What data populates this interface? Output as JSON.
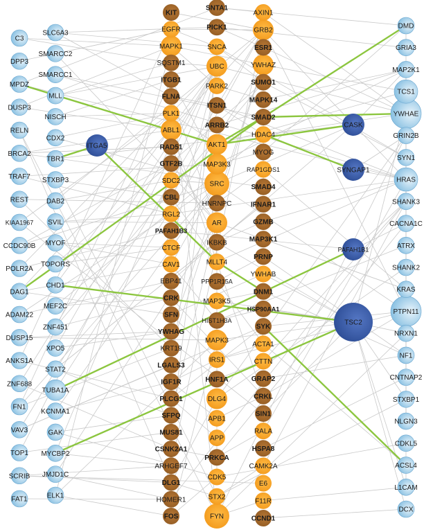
{
  "colors": {
    "edge": "#c9c9c9",
    "highlight_edge": "#8cc63f",
    "light_blue": "#a9d3ea",
    "light_blue_edge": "#6aa6cf",
    "dark_blue": "#3c5ea8",
    "orange": "#f8a72c",
    "brown": "#a56a2d",
    "label_dark": "#1a1a1a"
  },
  "columns": {
    "col1": {
      "style": "lightblue",
      "nodes": [
        "C3",
        "DPP3",
        "MPDZ",
        "DUSP3",
        "RELN",
        "BRCA2",
        "TRAF7",
        "REST",
        "KIAA1967",
        "CCDC90B",
        "POLR2A",
        "DAG1",
        "ADAM22",
        "DUSP15",
        "ANKS1A",
        "ZNF688",
        "FN1",
        "VAV3",
        "TOP1",
        "SCRIB",
        "FAT1"
      ]
    },
    "col2": {
      "style": "lightblue",
      "nodes": [
        "SLC6A3",
        "SMARCC2",
        "SMARCC1",
        "MLL",
        "NISCH",
        "CDX2",
        "TBR1",
        "STXBP3",
        "DAB2",
        "SVIL",
        "MYOF",
        "TOPORS",
        "CHD1",
        "MEF2C",
        "ZNF451",
        "XPO5",
        "STAT2",
        "TUBA1A",
        "KCNMA1",
        "GAK",
        "MYCBP2",
        "JMJD1C",
        "ELK1"
      ]
    },
    "col3": {
      "style": "mixed",
      "nodes": [
        "KIT",
        "EGFR",
        "MAPK1",
        "SQSTM1",
        "ITGB1",
        "FLNA",
        "PLK1",
        "ABL1",
        "RAD51",
        "GTF2B",
        "SDC2",
        "CBL",
        "RGL2",
        "PAFAH1B3",
        "CTCF",
        "CAV1",
        "EBP41",
        "CRK",
        "SFN",
        "YWHAG",
        "KRT19",
        "LGALS3",
        "IGF1R",
        "PLCG1",
        "SFPQ",
        "MUS81",
        "CSNK2A1",
        "ARHGEF7",
        "DLG1",
        "HOMER1",
        "FOS"
      ]
    },
    "col4": {
      "style": "mixed",
      "nodes": [
        "SNTA1",
        "PICK1",
        "SNCA",
        "UBC",
        "PARK2",
        "ITSN1",
        "ARRB2",
        "AKT1",
        "MAP3K3",
        "SRC",
        "HNRNPC",
        "AR",
        "IKBKB",
        "MLLT4",
        "PPP1R15A",
        "MAP3K5",
        "HIST1H3A",
        "MAPK3",
        "IRS1",
        "HNF1A",
        "DLG4",
        "APB1",
        "APP",
        "PRKCA",
        "CDK5",
        "STX2",
        "FYN"
      ]
    },
    "col5": {
      "style": "mixed",
      "nodes": [
        "AXIN1",
        "GRB2",
        "ESR1",
        "YWHAZ",
        "SUMO1",
        "MAPK14",
        "SMAD2",
        "HDAC4",
        "MYOG",
        "RAP1GDS1",
        "SMAD4",
        "IFNAR1",
        "GZMB",
        "MAP3K1",
        "PRNP",
        "YWHAB",
        "DNM1",
        "HSP90AA1",
        "SYK",
        "ACTA1",
        "CTTN",
        "GRAP2",
        "CRKL",
        "SIN1",
        "RALA",
        "HSPA8",
        "CAMK2A",
        "E6",
        "F11R",
        "CCND1"
      ]
    },
    "col7": {
      "style": "lightblue",
      "nodes": [
        "DMD",
        "GRIA3",
        "MAP2K1",
        "TCS1",
        "YWHAE",
        "GRIN2B",
        "SYN1",
        "HRAS",
        "SHANK3",
        "CACNA1C",
        "ATRX",
        "SHANK2",
        "KRAS",
        "PTPN11",
        "NRXN1",
        "NF1",
        "CNTNAP2",
        "STXBP1",
        "NLGN3",
        "CDKL5",
        "ACSL4",
        "L1CAM",
        "DCX"
      ]
    }
  },
  "special_nodes": [
    "ITGA5",
    "CASK",
    "SYNGAP1",
    "PAFAH1B1",
    "TSC2"
  ],
  "node_styles": {
    "brown": [
      "KIT",
      "SQSTM1",
      "ITGB1",
      "FLNA",
      "RAD51",
      "GTF2B",
      "CBL",
      "PAFAH1B3",
      "EBP41",
      "CRK",
      "SFN",
      "YWHAG",
      "KRT19",
      "LGALS3",
      "IGF1R",
      "PLCG1",
      "SFPQ",
      "MUS81",
      "CSNK2A1",
      "ARHGEF7",
      "DLG1",
      "HOMER1",
      "FOS",
      "SNTA1",
      "PICK1",
      "ITSN1",
      "ARRB2",
      "HNRNPC",
      "IKBKB",
      "PPP1R15A",
      "HIST1H3A",
      "HNF1A",
      "PRKCA",
      "ESR1",
      "SUMO1",
      "MAPK14",
      "SMAD2",
      "MYOG",
      "SMAD4",
      "IFNAR1",
      "GZMB",
      "MAP3K1",
      "PRNP",
      "DNM1",
      "HSP90AA1",
      "SYK",
      "GRAP2",
      "CRKL",
      "SIN1",
      "HSPA8",
      "CCND1"
    ],
    "bold": [
      "KIT",
      "ITGB1",
      "FLNA",
      "RAD51",
      "GTF2B",
      "CBL",
      "PAFAH1B3",
      "CRK",
      "SFN",
      "YWHAG",
      "LGALS3",
      "IGF1R",
      "PLCG1",
      "SFPQ",
      "MUS81",
      "CSNK2A1",
      "DLG1",
      "FOS",
      "SNTA1",
      "PICK1",
      "ITSN1",
      "ARRB2",
      "HNF1A",
      "PRKCA",
      "ESR1",
      "SUMO1",
      "MAPK14",
      "SMAD2",
      "SMAD4",
      "IFNAR1",
      "GZMB",
      "MAP3K1",
      "PRNP",
      "DNM1",
      "HSP90AA1",
      "SYK",
      "GRAP2",
      "CRKL",
      "SIN1",
      "HSPA8",
      "CCND1"
    ],
    "big": [
      "GRB2",
      "UBC",
      "SRC",
      "YWHAZ",
      "FYN",
      "AKT1",
      "MAP3K3",
      "DLG4",
      "AR",
      "MAPK3",
      "MAPK1",
      "ABL1",
      "TCS1",
      "YWHAE",
      "PTPN11",
      "HRAS",
      "TUBA1A",
      "CASK",
      "PAFAH1B1",
      "SYNGAP1",
      "ITGA5"
    ],
    "huge": [
      "TSC2",
      "YWHAE",
      "PTPN11",
      "SRC",
      "FYN"
    ]
  },
  "highlight_edges": [
    [
      "MPDZ",
      "AKT1"
    ],
    [
      "AKT1",
      "CASK"
    ],
    [
      "AKT1",
      "SMAD2"
    ],
    [
      "SMAD2",
      "DMD"
    ],
    [
      "ITGA5",
      "TBR1"
    ],
    [
      "ITGA5",
      "MLLT4"
    ],
    [
      "MLLT4",
      "DNM1"
    ],
    [
      "HDAC4",
      "SYNGAP1"
    ],
    [
      "SMAD2",
      "YWHAE"
    ],
    [
      "SMAD2",
      "DAG1"
    ],
    [
      "CHD1",
      "TSC2"
    ],
    [
      "TUBA1A",
      "PAFAH1B1"
    ],
    [
      "MYCBP2",
      "TSC2"
    ],
    [
      "SYK",
      "ACSL4"
    ]
  ],
  "gray_edges": [
    [
      "C3",
      "MAPK1"
    ],
    [
      "DPP3",
      "EGFR"
    ],
    [
      "MPDZ",
      "SNTA1"
    ],
    [
      "DUSP3",
      "MAPK1"
    ],
    [
      "RELN",
      "FYN"
    ],
    [
      "BRCA2",
      "RAD51"
    ],
    [
      "BRCA2",
      "SMAD4"
    ],
    [
      "TRAF7",
      "MAP3K3"
    ],
    [
      "REST",
      "HNRNPC"
    ],
    [
      "KIAA1967",
      "SIN1"
    ],
    [
      "CCDC90B",
      "SRC"
    ],
    [
      "POLR2A",
      "UBC"
    ],
    [
      "DAG1",
      "GRB2"
    ],
    [
      "DAG1",
      "CAV1"
    ],
    [
      "ADAM22",
      "SRC"
    ],
    [
      "DUSP15",
      "MAPK3"
    ],
    [
      "ANKS1A",
      "EGFR"
    ],
    [
      "ZNF688",
      "UBC"
    ],
    [
      "FN1",
      "ITGB1"
    ],
    [
      "FN1",
      "SRC"
    ],
    [
      "VAV3",
      "GRB2"
    ],
    [
      "VAV3",
      "SYK"
    ],
    [
      "TOP1",
      "UBC"
    ],
    [
      "SCRIB",
      "DLG1"
    ],
    [
      "FAT1",
      "HOMER1"
    ],
    [
      "SLC6A3",
      "SNCA"
    ],
    [
      "SLC6A3",
      "PICK1"
    ],
    [
      "SMARCC2",
      "AR"
    ],
    [
      "SMARCC1",
      "SMAD2"
    ],
    [
      "MLL",
      "UBC"
    ],
    [
      "NISCH",
      "ITGB1"
    ],
    [
      "CDX2",
      "SRC"
    ],
    [
      "TBR1",
      "CASK"
    ],
    [
      "STXBP3",
      "STX2"
    ],
    [
      "DAB2",
      "GRB2"
    ],
    [
      "SVIL",
      "AR"
    ],
    [
      "MYOF",
      "CAV1"
    ],
    [
      "TOPORS",
      "SUMO1"
    ],
    [
      "CHD1",
      "UBC"
    ],
    [
      "MEF2C",
      "HDAC4"
    ],
    [
      "ZNF451",
      "SUMO1"
    ],
    [
      "XPO5",
      "UBC"
    ],
    [
      "STAT2",
      "IFNAR1"
    ],
    [
      "TUBA1A",
      "YWHAZ"
    ],
    [
      "KCNMA1",
      "SRC"
    ],
    [
      "GAK",
      "CDK5"
    ],
    [
      "MYCBP2",
      "UBC"
    ],
    [
      "JMJD1C",
      "AR"
    ],
    [
      "ELK1",
      "MAPK3"
    ],
    [
      "ELK1",
      "MAPK1"
    ],
    [
      "KIT",
      "GRB2"
    ],
    [
      "EGFR",
      "GRB2"
    ],
    [
      "MAPK1",
      "YWHAZ"
    ],
    [
      "SQSTM1",
      "UBC"
    ],
    [
      "ITGB1",
      "FYN"
    ],
    [
      "FLNA",
      "AR"
    ],
    [
      "PLK1",
      "AKT1"
    ],
    [
      "ABL1",
      "CRKL"
    ],
    [
      "RAD51",
      "BRCA2"
    ],
    [
      "GTF2B",
      "AR"
    ],
    [
      "SDC2",
      "SRC"
    ],
    [
      "CBL",
      "GRB2"
    ],
    [
      "RGL2",
      "HRAS"
    ],
    [
      "PAFAH1B3",
      "PAFAH1B1"
    ],
    [
      "CTCF",
      "UBC"
    ],
    [
      "CAV1",
      "SRC"
    ],
    [
      "EBP41",
      "CASK"
    ],
    [
      "CRK",
      "CRKL"
    ],
    [
      "SFN",
      "YWHAB"
    ],
    [
      "YWHAG",
      "YWHAZ"
    ],
    [
      "KRT19",
      "YWHAZ"
    ],
    [
      "LGALS3",
      "UBC"
    ],
    [
      "IGF1R",
      "IRS1"
    ],
    [
      "PLCG1",
      "SYK"
    ],
    [
      "SFPQ",
      "AR"
    ],
    [
      "MUS81",
      "UBC"
    ],
    [
      "CSNK2A1",
      "PRKCA"
    ],
    [
      "ARHGEF7",
      "GRB2"
    ],
    [
      "DLG1",
      "DLG4"
    ],
    [
      "HOMER1",
      "SHANK3"
    ],
    [
      "FOS",
      "MAPK3"
    ],
    [
      "SNTA1",
      "DMD"
    ],
    [
      "PICK1",
      "GRIA3"
    ],
    [
      "SNCA",
      "SYN1"
    ],
    [
      "UBC",
      "YWHAE"
    ],
    [
      "PARK2",
      "SNCA"
    ],
    [
      "ITSN1",
      "HRAS"
    ],
    [
      "ARRB2",
      "MAP2K1"
    ],
    [
      "AKT1",
      "TCS1"
    ],
    [
      "MAP3K3",
      "MAP2K1"
    ],
    [
      "SRC",
      "PTPN11"
    ],
    [
      "SRC",
      "CASK"
    ],
    [
      "HNRNPC",
      "AR"
    ],
    [
      "AR",
      "KRAS"
    ],
    [
      "IKBKB",
      "TSC2"
    ],
    [
      "MLLT4",
      "HRAS"
    ],
    [
      "PPP1R15A",
      "ACTA1"
    ],
    [
      "MAP3K5",
      "TSC2"
    ],
    [
      "HIST1H3A",
      "ATRX"
    ],
    [
      "MAPK3",
      "TSC2"
    ],
    [
      "IRS1",
      "PTPN11"
    ],
    [
      "HNF1A",
      "AR"
    ],
    [
      "DLG4",
      "GRIN2B"
    ],
    [
      "DLG4",
      "SHANK2"
    ],
    [
      "APB1",
      "APP"
    ],
    [
      "APP",
      "CDK5"
    ],
    [
      "PRKCA",
      "CACNA1C"
    ],
    [
      "CDK5",
      "CDKL5"
    ],
    [
      "STX2",
      "STXBP1"
    ],
    [
      "FYN",
      "GRIN2B"
    ],
    [
      "FYN",
      "NRXN1"
    ],
    [
      "AXIN1",
      "YWHAE"
    ],
    [
      "GRB2",
      "HRAS"
    ],
    [
      "GRB2",
      "PTPN11"
    ],
    [
      "ESR1",
      "YWHAE"
    ],
    [
      "YWHAZ",
      "TCS1"
    ],
    [
      "SUMO1",
      "SYN1"
    ],
    [
      "MAPK14",
      "MAP2K1"
    ],
    [
      "HDAC4",
      "YWHAE"
    ],
    [
      "MYOG",
      "DMD"
    ],
    [
      "RAP1GDS1",
      "KRAS"
    ],
    [
      "SMAD4",
      "SMAD2"
    ],
    [
      "IFNAR1",
      "STAT2"
    ],
    [
      "GZMB",
      "HRAS"
    ],
    [
      "MAP3K1",
      "KRAS"
    ],
    [
      "PRNP",
      "NF1"
    ],
    [
      "YWHAB",
      "TSC2"
    ],
    [
      "DNM1",
      "NF1"
    ],
    [
      "HSP90AA1",
      "TSC2"
    ],
    [
      "SYK",
      "PTPN11"
    ],
    [
      "ACTA1",
      "ACSL4"
    ],
    [
      "CTTN",
      "SHANK3"
    ],
    [
      "GRAP2",
      "NF1"
    ],
    [
      "CRKL",
      "PTPN11"
    ],
    [
      "SIN1",
      "TSC2"
    ],
    [
      "RALA",
      "HRAS"
    ],
    [
      "HSPA8",
      "CNTNAP2"
    ],
    [
      "CAMK2A",
      "SHANK3"
    ],
    [
      "E6",
      "SCRIB"
    ],
    [
      "F11R",
      "L1CAM"
    ],
    [
      "CCND1",
      "DCX"
    ],
    [
      "YWHAE",
      "TSC2"
    ],
    [
      "GRIA3",
      "NLGN3"
    ],
    [
      "YWHAE",
      "NLGN3"
    ],
    [
      "HRAS",
      "NF1"
    ],
    [
      "SMARCC1",
      "HRAS"
    ],
    [
      "MPDZ",
      "HRAS"
    ],
    [
      "DUSP3",
      "ABL1"
    ],
    [
      "BRCA2",
      "ABL1"
    ],
    [
      "REST",
      "KRT19"
    ],
    [
      "DAG1",
      "SFN"
    ],
    [
      "ANKS1A",
      "PLCG1"
    ],
    [
      "ZNF688",
      "CSNK2A1"
    ],
    [
      "VAV3",
      "LGALS3"
    ],
    [
      "TOP1",
      "MUS81"
    ],
    [
      "SCRIB",
      "ARHGEF7"
    ],
    [
      "CDX2",
      "PLK1"
    ],
    [
      "MYOF",
      "CTCF"
    ],
    [
      "ZNF451",
      "CRK"
    ],
    [
      "XPO5",
      "YWHAG"
    ],
    [
      "KCNMA1",
      "IGF1R"
    ],
    [
      "GAK",
      "SFPQ"
    ],
    [
      "ELK1",
      "FOS"
    ],
    [
      "C3",
      "SQSTM1"
    ],
    [
      "SLC6A3",
      "FLNA"
    ],
    [
      "RELN",
      "DLG1"
    ],
    [
      "TRAF7",
      "RGL2"
    ],
    [
      "POLR2A",
      "PAFAH1B3"
    ],
    [
      "ADAM22",
      "EBP41"
    ],
    [
      "FN1",
      "KRT19"
    ],
    [
      "EGFR",
      "SNCA"
    ],
    [
      "MAPK1",
      "PARK2"
    ],
    [
      "ITGB1",
      "MAP3K3"
    ],
    [
      "FLNA",
      "ITSN1"
    ],
    [
      "RAD51",
      "IKBKB"
    ],
    [
      "CBL",
      "MLLT4"
    ],
    [
      "CAV1",
      "HIST1H3A"
    ],
    [
      "SFN",
      "IRS1"
    ],
    [
      "IGF1R",
      "APB1"
    ],
    [
      "PLCG1",
      "APP"
    ],
    [
      "DLG1",
      "STX2"
    ],
    [
      "FOS",
      "CDK5"
    ],
    [
      "SNTA1",
      "AXIN1"
    ],
    [
      "PICK1",
      "ESR1"
    ],
    [
      "SNCA",
      "SUMO1"
    ],
    [
      "PARK2",
      "MAPK14"
    ],
    [
      "ITSN1",
      "HDAC4"
    ],
    [
      "MAP3K3",
      "MYOG"
    ],
    [
      "HNRNPC",
      "RAP1GDS1"
    ],
    [
      "IKBKB",
      "GZMB"
    ],
    [
      "PPP1R15A",
      "PRNP"
    ],
    [
      "MAP3K5",
      "DNM1"
    ],
    [
      "HIST1H3A",
      "HSP90AA1"
    ],
    [
      "IRS1",
      "ACTA1"
    ],
    [
      "HNF1A",
      "CTTN"
    ],
    [
      "APB1",
      "CRKL"
    ],
    [
      "PRKCA",
      "RALA"
    ],
    [
      "STX2",
      "CAMK2A"
    ],
    [
      "FYN",
      "F11R"
    ],
    [
      "DMD",
      "GRIA3"
    ],
    [
      "MAP2K1",
      "SYN1"
    ],
    [
      "TCS1",
      "SHANK3"
    ],
    [
      "GRIN2B",
      "CACNA1C"
    ],
    [
      "ATRX",
      "SHANK2"
    ],
    [
      "KRAS",
      "NF1"
    ],
    [
      "CNTNAP2",
      "NLGN3"
    ],
    [
      "CDKL5",
      "L1CAM"
    ],
    [
      "MAP2K1",
      "CASK"
    ],
    [
      "HRAS",
      "SYNGAP1"
    ],
    [
      "GRIN2B",
      "SYNGAP1"
    ],
    [
      "SHANK3",
      "PAFAH1B1"
    ],
    [
      "CACNA1C",
      "PAFAH1B1"
    ],
    [
      "NRXN1",
      "TSC2"
    ],
    [
      "STXBP1",
      "TSC2"
    ],
    [
      "DCX",
      "TSC2"
    ],
    [
      "L1CAM",
      "TSC2"
    ],
    [
      "KIAA1967",
      "PLK1"
    ],
    [
      "CCDC90B",
      "GTF2B"
    ],
    [
      "DUSP15",
      "YWHAG"
    ],
    [
      "TOPORS",
      "CTCF"
    ],
    [
      "JMJD1C",
      "HOMER1"
    ],
    [
      "MYCBP2",
      "ARHGEF7"
    ],
    [
      "STAT2",
      "SFPQ"
    ],
    [
      "MEF2C",
      "CRK"
    ],
    [
      "SVIL",
      "RGL2"
    ],
    [
      "DAB2",
      "SDC2"
    ],
    [
      "STXBP3",
      "CBL"
    ],
    [
      "NISCH",
      "PLK1"
    ],
    [
      "MLL",
      "SQSTM1"
    ],
    [
      "SMARCC2",
      "EGFR"
    ]
  ]
}
